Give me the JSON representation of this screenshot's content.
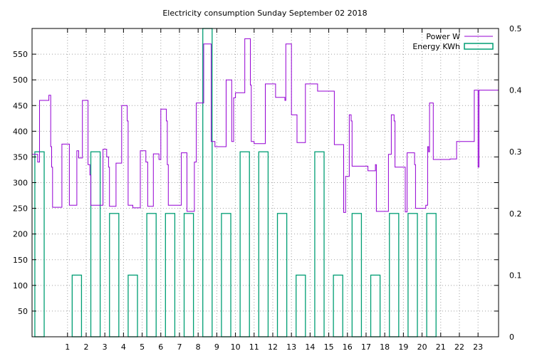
{
  "chart_data": {
    "type": "line",
    "title": "Electricity consumption Sunday September 02 2018",
    "x_ticks": [
      1,
      2,
      3,
      4,
      5,
      6,
      7,
      8,
      9,
      10,
      11,
      12,
      13,
      14,
      15,
      16,
      17,
      18,
      19,
      20,
      21,
      22,
      23
    ],
    "xlim": [
      -0.9,
      24.1
    ],
    "y_left": {
      "ylim": [
        0,
        600
      ],
      "ticks": [
        50,
        100,
        150,
        200,
        250,
        300,
        350,
        400,
        450,
        500,
        550
      ]
    },
    "y_right": {
      "ylim": [
        0,
        0.5
      ],
      "ticks": [
        0,
        0.1,
        0.2,
        0.3,
        0.4,
        0.5
      ]
    },
    "grid": true,
    "legend_position": "top-right",
    "series": [
      {
        "name": "Power W",
        "axis": "left",
        "color": "#9400d3",
        "style": "steps",
        "points": [
          [
            -0.9,
            355
          ],
          [
            -0.6,
            355
          ],
          [
            -0.6,
            340
          ],
          [
            -0.5,
            340
          ],
          [
            -0.5,
            460
          ],
          [
            0,
            460
          ],
          [
            0,
            470
          ],
          [
            0.1,
            470
          ],
          [
            0.1,
            370
          ],
          [
            0.15,
            370
          ],
          [
            0.15,
            330
          ],
          [
            0.2,
            330
          ],
          [
            0.2,
            252
          ],
          [
            0.7,
            252
          ],
          [
            0.7,
            375
          ],
          [
            1.1,
            375
          ],
          [
            1.1,
            256
          ],
          [
            1.5,
            256
          ],
          [
            1.5,
            362
          ],
          [
            1.6,
            362
          ],
          [
            1.6,
            348
          ],
          [
            1.8,
            348
          ],
          [
            1.8,
            460
          ],
          [
            2.1,
            460
          ],
          [
            2.1,
            335
          ],
          [
            2.2,
            335
          ],
          [
            2.2,
            315
          ],
          [
            2.25,
            315
          ],
          [
            2.25,
            256
          ],
          [
            2.9,
            256
          ],
          [
            2.9,
            365
          ],
          [
            3.1,
            365
          ],
          [
            3.1,
            350
          ],
          [
            3.2,
            350
          ],
          [
            3.2,
            330
          ],
          [
            3.25,
            330
          ],
          [
            3.25,
            254
          ],
          [
            3.6,
            254
          ],
          [
            3.6,
            338
          ],
          [
            3.9,
            338
          ],
          [
            3.9,
            450
          ],
          [
            4.2,
            450
          ],
          [
            4.2,
            420
          ],
          [
            4.25,
            420
          ],
          [
            4.25,
            256
          ],
          [
            4.5,
            256
          ],
          [
            4.5,
            251
          ],
          [
            4.9,
            251
          ],
          [
            4.9,
            362
          ],
          [
            5.2,
            362
          ],
          [
            5.2,
            340
          ],
          [
            5.3,
            340
          ],
          [
            5.3,
            254
          ],
          [
            5.6,
            254
          ],
          [
            5.6,
            356
          ],
          [
            5.9,
            356
          ],
          [
            5.9,
            345
          ],
          [
            6.0,
            345
          ],
          [
            6.0,
            443
          ],
          [
            6.3,
            443
          ],
          [
            6.3,
            420
          ],
          [
            6.35,
            420
          ],
          [
            6.35,
            335
          ],
          [
            6.4,
            335
          ],
          [
            6.4,
            256
          ],
          [
            7.1,
            256
          ],
          [
            7.1,
            358
          ],
          [
            7.4,
            358
          ],
          [
            7.4,
            244
          ],
          [
            7.8,
            244
          ],
          [
            7.8,
            340
          ],
          [
            7.9,
            340
          ],
          [
            7.9,
            455
          ],
          [
            8.3,
            455
          ],
          [
            8.3,
            570
          ],
          [
            8.7,
            570
          ],
          [
            8.7,
            380
          ],
          [
            8.9,
            380
          ],
          [
            8.9,
            370
          ],
          [
            9.5,
            370
          ],
          [
            9.5,
            500
          ],
          [
            9.8,
            500
          ],
          [
            9.8,
            380
          ],
          [
            9.9,
            380
          ],
          [
            9.9,
            465
          ],
          [
            10.0,
            465
          ],
          [
            10.0,
            475
          ],
          [
            10.5,
            475
          ],
          [
            10.5,
            580
          ],
          [
            10.8,
            580
          ],
          [
            10.8,
            490
          ],
          [
            10.85,
            490
          ],
          [
            10.85,
            380
          ],
          [
            11.0,
            380
          ],
          [
            11.0,
            376
          ],
          [
            11.6,
            376
          ],
          [
            11.6,
            492
          ],
          [
            12.15,
            492
          ],
          [
            12.15,
            466
          ],
          [
            12.65,
            466
          ],
          [
            12.65,
            460
          ],
          [
            12.7,
            460
          ],
          [
            12.7,
            570
          ],
          [
            13.0,
            570
          ],
          [
            13.0,
            432
          ],
          [
            13.3,
            432
          ],
          [
            13.3,
            378
          ],
          [
            13.75,
            378
          ],
          [
            13.75,
            492
          ],
          [
            14.4,
            492
          ],
          [
            14.4,
            478
          ],
          [
            15.3,
            478
          ],
          [
            15.3,
            374
          ],
          [
            15.8,
            374
          ],
          [
            15.8,
            242
          ],
          [
            15.9,
            242
          ],
          [
            15.9,
            312
          ],
          [
            16.1,
            312
          ],
          [
            16.1,
            432
          ],
          [
            16.2,
            432
          ],
          [
            16.2,
            420
          ],
          [
            16.25,
            420
          ],
          [
            16.25,
            332
          ],
          [
            17.1,
            332
          ],
          [
            17.1,
            323
          ],
          [
            17.5,
            323
          ],
          [
            17.5,
            335
          ],
          [
            17.55,
            335
          ],
          [
            17.55,
            244
          ],
          [
            18.2,
            244
          ],
          [
            18.2,
            355
          ],
          [
            18.35,
            355
          ],
          [
            18.35,
            432
          ],
          [
            18.5,
            432
          ],
          [
            18.5,
            420
          ],
          [
            18.55,
            420
          ],
          [
            18.55,
            330
          ],
          [
            19.1,
            330
          ],
          [
            19.1,
            243
          ],
          [
            19.2,
            243
          ],
          [
            19.2,
            358
          ],
          [
            19.6,
            358
          ],
          [
            19.6,
            335
          ],
          [
            19.65,
            335
          ],
          [
            19.65,
            250
          ],
          [
            20.2,
            250
          ],
          [
            20.2,
            256
          ],
          [
            20.3,
            256
          ],
          [
            20.3,
            370
          ],
          [
            20.35,
            370
          ],
          [
            20.35,
            360
          ],
          [
            20.4,
            360
          ],
          [
            20.4,
            455
          ],
          [
            20.6,
            455
          ],
          [
            20.6,
            345
          ],
          [
            21.5,
            345
          ],
          [
            21.5,
            346
          ],
          [
            21.85,
            346
          ],
          [
            21.85,
            380
          ],
          [
            22.8,
            380
          ],
          [
            22.8,
            480
          ],
          [
            23.0,
            480
          ],
          [
            23.0,
            330
          ],
          [
            23.05,
            330
          ],
          [
            23.05,
            480
          ],
          [
            24.1,
            480
          ]
        ]
      },
      {
        "name": "Energy KWh",
        "axis": "right",
        "color": "#009e73",
        "style": "bars",
        "bars": [
          [
            -0.5,
            0.3
          ],
          [
            0.5,
            0.0
          ],
          [
            1.5,
            0.1
          ],
          [
            2.5,
            0.3
          ],
          [
            3.5,
            0.2
          ],
          [
            4.5,
            0.1
          ],
          [
            5.5,
            0.2
          ],
          [
            6.5,
            0.2
          ],
          [
            7.5,
            0.2
          ],
          [
            8.5,
            0.5
          ],
          [
            9.5,
            0.2
          ],
          [
            10.5,
            0.3
          ],
          [
            11.5,
            0.3
          ],
          [
            12.5,
            0.2
          ],
          [
            13.5,
            0.1
          ],
          [
            14.5,
            0.3
          ],
          [
            15.5,
            0.1
          ],
          [
            16.5,
            0.2
          ],
          [
            17.5,
            0.1
          ],
          [
            18.5,
            0.2
          ],
          [
            19.5,
            0.2
          ],
          [
            20.5,
            0.2
          ]
        ]
      }
    ]
  }
}
